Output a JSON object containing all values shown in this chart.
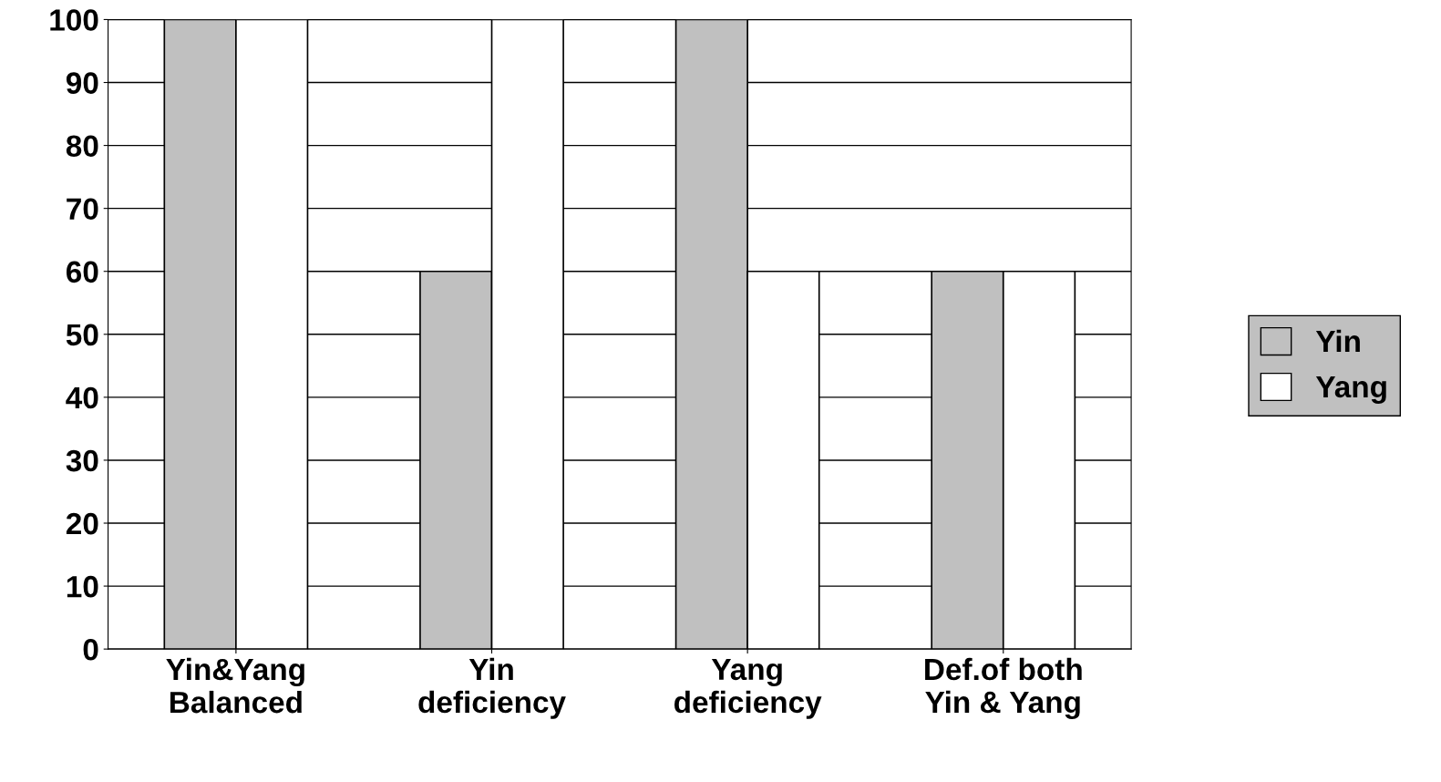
{
  "chart_data": {
    "type": "bar",
    "categories": [
      "Yin&Yang\nBalanced",
      "Yin\ndeficiency",
      "Yang\ndeficiency",
      "Def.of both\nYin & Yang"
    ],
    "series": [
      {
        "name": "Yin",
        "color": "#c0c0c0",
        "values": [
          100,
          60,
          100,
          60
        ]
      },
      {
        "name": "Yang",
        "color": "#ffffff",
        "values": [
          100,
          100,
          60,
          60
        ]
      }
    ],
    "ylim": [
      0,
      100
    ],
    "yticks": [
      0,
      10,
      20,
      30,
      40,
      50,
      60,
      70,
      80,
      90,
      100
    ],
    "grid": "y",
    "legend": "right"
  }
}
